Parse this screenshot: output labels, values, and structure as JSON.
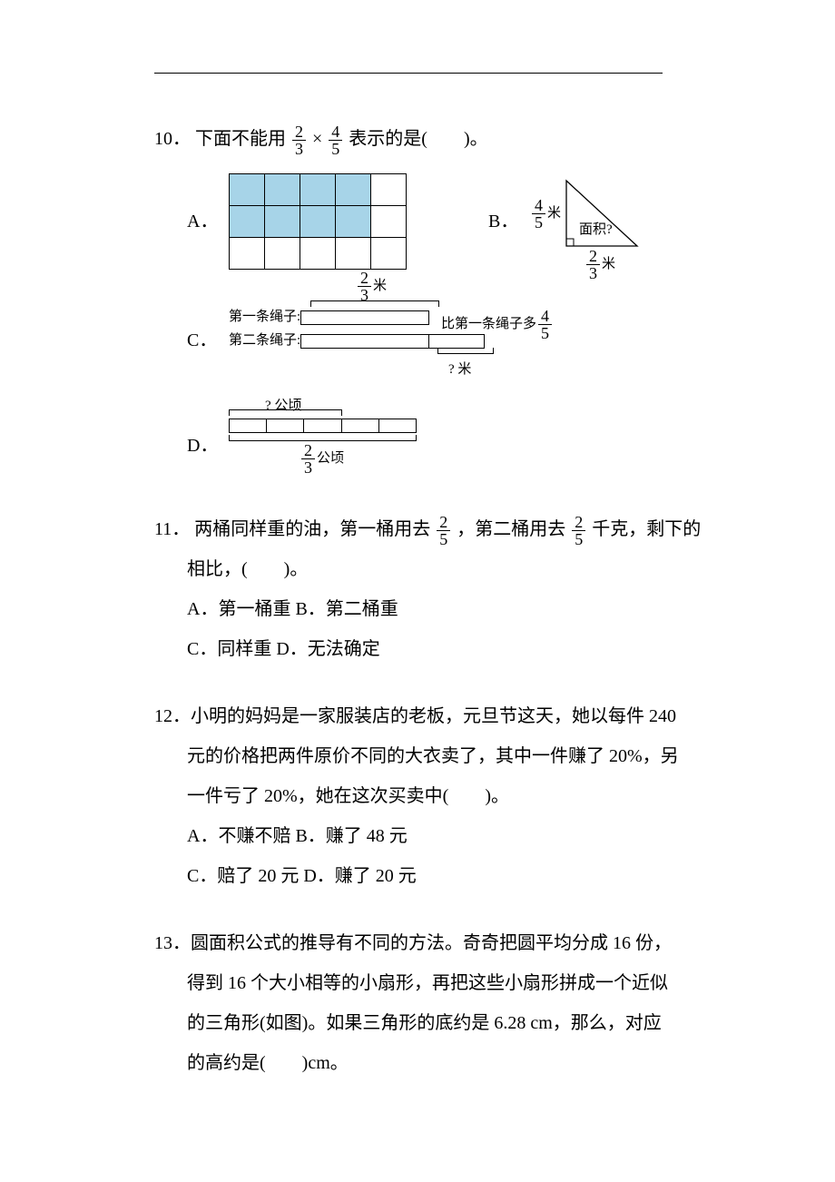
{
  "q10": {
    "number": "10．",
    "stem_pre": "下面不能用",
    "frac1_n": "2",
    "frac1_d": "3",
    "times": "×",
    "frac2_n": "4",
    "frac2_d": "5",
    "stem_post": "表示的是(　　)。",
    "optA": "A．",
    "gridA": {
      "rows": 3,
      "cols": 5,
      "filled": [
        [
          0,
          0
        ],
        [
          0,
          1
        ],
        [
          0,
          2
        ],
        [
          0,
          3
        ],
        [
          1,
          0
        ],
        [
          1,
          1
        ],
        [
          1,
          2
        ],
        [
          1,
          3
        ]
      ],
      "fill_color": "#a7d4e8"
    },
    "optB": "B．",
    "triB": {
      "left_n": "4",
      "left_d": "5",
      "left_unit": "米",
      "bottom_n": "2",
      "bottom_d": "3",
      "bottom_unit": "米",
      "area": "面积?"
    },
    "optC": "C．",
    "figC": {
      "top_n": "2",
      "top_d": "3",
      "top_unit": "米",
      "l1": "第一条绳子:",
      "l2": "第二条绳子:",
      "right_pre": "比第一条绳子多",
      "right_n": "4",
      "right_d": "5",
      "q": "? 米"
    },
    "optD": "D．",
    "figD": {
      "top": "? 公顷",
      "bottom_n": "2",
      "bottom_d": "3",
      "bottom_unit": "公顷"
    }
  },
  "q11": {
    "number": "11．",
    "p1_a": "两桶同样重的油，第一桶用去",
    "f1_n": "2",
    "f1_d": "5",
    "p1_b": "，第二桶用去",
    "f2_n": "2",
    "f2_d": "5",
    "p1_c": "千克，剩下的",
    "p2": "相比，(　　)。",
    "optA": "A．第一桶重 B．第二桶重",
    "optC": "C．同样重 D．无法确定"
  },
  "q12": {
    "number": "12．",
    "p1": "小明的妈妈是一家服装店的老板，元旦节这天，她以每件 240",
    "p2": "元的价格把两件原价不同的大衣卖了，其中一件赚了 20%，另",
    "p3": "一件亏了 20%，她在这次买卖中(　　)。",
    "optA": "A．不赚不赔 B．赚了 48  元",
    "optC": "C．赔了 20  元 D．赚了 20  元"
  },
  "q13": {
    "number": "13．",
    "p1": "圆面积公式的推导有不同的方法。奇奇把圆平均分成 16  份，",
    "p2": "得到 16  个大小相等的小扇形，再把这些小扇形拼成一个近似",
    "p3": "的三角形(如图)。如果三角形的底约是 6.28 cm，那么，对应",
    "p4": "的高约是(　　)cm。"
  }
}
